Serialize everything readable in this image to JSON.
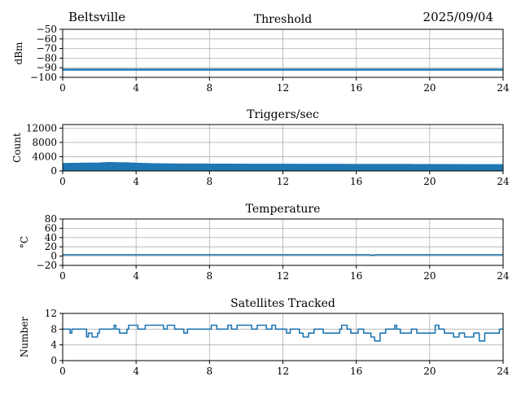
{
  "header": {
    "site": "Beltsville",
    "date": "2025/09/04"
  },
  "colors": {
    "series": "#1f77b4",
    "grid": "#b0b0b0",
    "axis": "#000000"
  },
  "chart_data": [
    {
      "type": "line",
      "title": "Threshold",
      "ylabel": "dBm",
      "xlim": [
        0,
        24
      ],
      "ylim": [
        -100,
        -50
      ],
      "xticks": [
        0,
        4,
        8,
        12,
        16,
        20,
        24
      ],
      "yticks": [
        -100,
        -90,
        -80,
        -70,
        -60,
        -50
      ],
      "grid": true,
      "series": [
        {
          "x": [
            0,
            24
          ],
          "y": [
            -92,
            -92
          ]
        }
      ]
    },
    {
      "type": "area",
      "title": "Triggers/sec",
      "ylabel": "Count",
      "xlim": [
        0,
        24
      ],
      "ylim": [
        0,
        13000
      ],
      "xticks": [
        0,
        4,
        8,
        12,
        16,
        20,
        24
      ],
      "yticks": [
        0,
        4000,
        8000,
        12000
      ],
      "grid": true,
      "series": [
        {
          "x": [
            0,
            1,
            2,
            2.5,
            3,
            3.5,
            4,
            5,
            6,
            7,
            8,
            9,
            10,
            11,
            12,
            13,
            14,
            15,
            16,
            17,
            18,
            19,
            20,
            21,
            22,
            23,
            24
          ],
          "y_high": [
            2100,
            2200,
            2250,
            2400,
            2350,
            2300,
            2200,
            2050,
            2000,
            1980,
            1950,
            1950,
            1920,
            1900,
            1900,
            1880,
            1880,
            1870,
            1860,
            1850,
            1850,
            1840,
            1830,
            1820,
            1810,
            1800,
            1800
          ],
          "y_low": [
            0
          ]
        }
      ]
    },
    {
      "type": "line",
      "title": "Temperature",
      "ylabel": "°C",
      "xlim": [
        0,
        24
      ],
      "ylim": [
        -20,
        80
      ],
      "xticks": [
        0,
        4,
        8,
        12,
        16,
        20,
        24
      ],
      "yticks": [
        -20,
        0,
        20,
        40,
        60,
        80
      ],
      "grid": true,
      "series": [
        {
          "x": [
            0,
            16.7,
            16.8,
            16.95,
            17.1,
            24
          ],
          "y": [
            3,
            3,
            2,
            2,
            3,
            3
          ]
        }
      ]
    },
    {
      "type": "line",
      "title": "Satellites Tracked",
      "ylabel": "Number",
      "xlim": [
        0,
        24
      ],
      "ylim": [
        0,
        12
      ],
      "xticks": [
        0,
        4,
        8,
        12,
        16,
        20,
        24
      ],
      "yticks": [
        0,
        4,
        8,
        12
      ],
      "grid": true,
      "series": [
        {
          "x": [
            0,
            0.4,
            0.5,
            1.3,
            1.4,
            1.6,
            1.9,
            2.0,
            2.8,
            2.9,
            3.1,
            3.5,
            3.6,
            4.1,
            4.5,
            5.5,
            5.7,
            6.1,
            6.6,
            6.8,
            8.1,
            8.4,
            9.0,
            9.2,
            9.5,
            10.3,
            10.6,
            11.1,
            11.4,
            11.6,
            12.2,
            12.4,
            12.9,
            13.1,
            13.4,
            13.7,
            14.2,
            15.1,
            15.2,
            15.5,
            15.7,
            16.1,
            16.4,
            16.8,
            17.0,
            17.3,
            17.6,
            18.1,
            18.2,
            18.4,
            19.0,
            19.3,
            20.3,
            20.5,
            20.8,
            21.3,
            21.6,
            21.9,
            22.4,
            22.7,
            23.0,
            23.7,
            23.8,
            24
          ],
          "y": [
            8,
            7,
            8,
            6,
            7,
            6,
            7,
            8,
            9,
            8,
            7,
            8,
            9,
            8,
            9,
            8,
            9,
            8,
            7,
            8,
            9,
            8,
            9,
            8,
            9,
            8,
            9,
            8,
            9,
            8,
            7,
            8,
            7,
            6,
            7,
            8,
            7,
            8,
            9,
            8,
            7,
            8,
            7,
            6,
            5,
            7,
            8,
            9,
            8,
            7,
            8,
            7,
            9,
            8,
            7,
            6,
            7,
            6,
            7,
            5,
            7,
            7,
            8,
            8
          ]
        }
      ]
    }
  ]
}
